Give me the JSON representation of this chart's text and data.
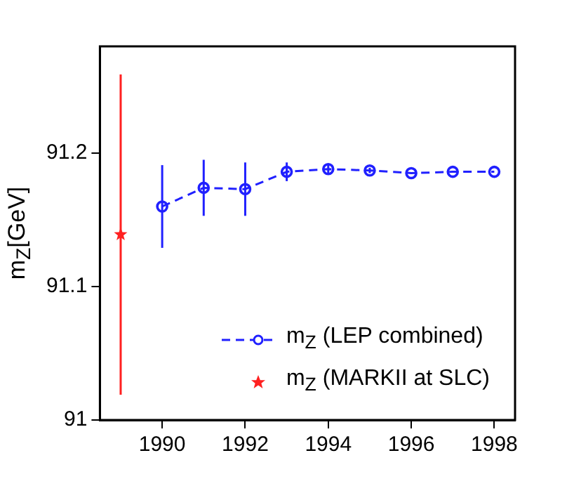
{
  "chart_data": {
    "type": "line",
    "ylabel": "m$_{Z}$[GeV]",
    "xlim": [
      1988.5,
      1998.5
    ],
    "xticks": [
      1990,
      1992,
      1994,
      1996,
      1998
    ],
    "ylim": [
      91,
      91.28
    ],
    "yticks": [
      91,
      91.1,
      91.2
    ],
    "grid": false,
    "legend": "bottom right",
    "series": [
      {
        "name": "m$_{Z}$ (LEP combined)",
        "type": "line",
        "color": "#2020ff",
        "marker": "circle",
        "line_style": "dashed",
        "x": [
          1990,
          1991,
          1992,
          1993,
          1994,
          1995,
          1996,
          1997,
          1998
        ],
        "values": [
          91.16,
          91.174,
          91.173,
          91.186,
          91.188,
          91.187,
          91.185,
          91.186,
          91.186
        ],
        "errors": [
          0.031,
          0.021,
          0.02,
          0.007,
          0.004,
          0.002,
          null,
          null,
          null
        ]
      },
      {
        "name": "m$_{Z}$ (MARKII at SLC)",
        "type": "scatter",
        "color": "#ff2020",
        "marker": "star",
        "x": [
          1989
        ],
        "values": [
          91.139
        ],
        "errors": [
          0.12
        ]
      }
    ]
  }
}
